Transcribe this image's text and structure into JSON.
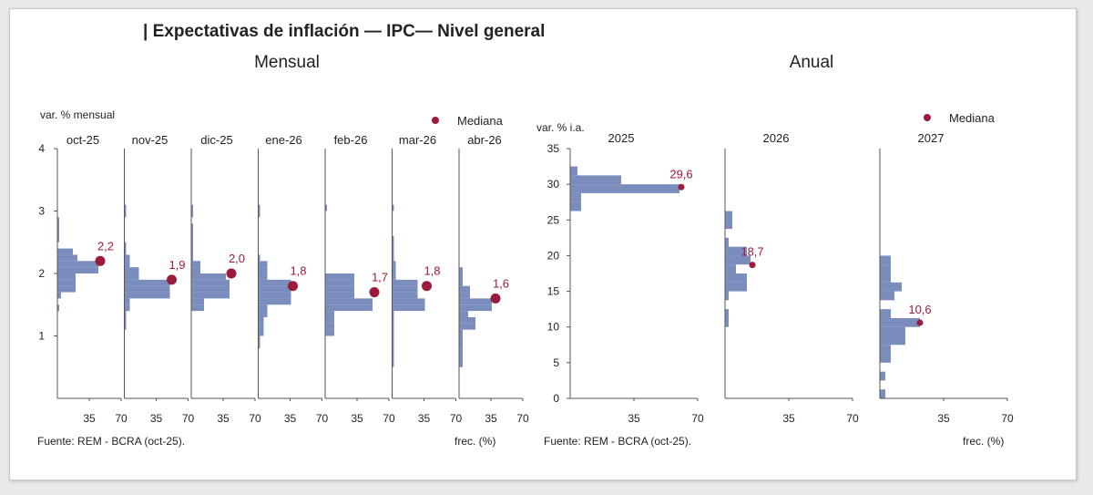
{
  "title": "| Expectativas de inflación — IPC— Nivel general",
  "colors": {
    "bar": "#7b8dbd",
    "median": "#9b1b3c",
    "axis": "#555555",
    "text": "#222222"
  },
  "mensual": {
    "heading": "Mensual",
    "ylabel": "var. % mensual",
    "legend": "Mediana",
    "source": "Fuente: REM - BCRA (oct-25).",
    "xlabel": "frec. (%)",
    "yticks": [
      "1",
      "2",
      "3",
      "4"
    ]
  },
  "anual": {
    "heading": "Anual",
    "ylabel": "var. % i.a.",
    "legend": "Mediana",
    "source": "Fuente: REM - BCRA (oct-25).",
    "xlabel": "frec. (%)",
    "yticks": [
      "0",
      "5",
      "10",
      "15",
      "20",
      "25",
      "30",
      "35"
    ]
  },
  "chart_data": [
    {
      "type": "bar",
      "orientation": "horizontal",
      "group": "Mensual",
      "ylabel": "var. % mensual",
      "xlabel": "frec. (%)",
      "ylim": [
        0,
        4
      ],
      "xlim": [
        0,
        70
      ],
      "xticks": [
        35,
        70
      ],
      "bin_width": 0.1,
      "panels": [
        {
          "name": "oct-25",
          "bins": [
            [
              1.4,
              2
            ],
            [
              1.6,
              4
            ],
            [
              1.7,
              20
            ],
            [
              1.8,
              20
            ],
            [
              1.9,
              20
            ],
            [
              2.0,
              45
            ],
            [
              2.1,
              45
            ],
            [
              2.2,
              22
            ],
            [
              2.3,
              17
            ],
            [
              2.5,
              2
            ],
            [
              2.6,
              2
            ],
            [
              2.7,
              2
            ],
            [
              2.8,
              2
            ]
          ],
          "median": 2.2,
          "median_label": "2,2",
          "median_freq": 47
        },
        {
          "name": "nov-25",
          "bins": [
            [
              1.1,
              2
            ],
            [
              1.2,
              2
            ],
            [
              1.3,
              2
            ],
            [
              1.4,
              6
            ],
            [
              1.5,
              6
            ],
            [
              1.6,
              50
            ],
            [
              1.7,
              50
            ],
            [
              1.8,
              50
            ],
            [
              1.9,
              16
            ],
            [
              2.0,
              16
            ],
            [
              2.1,
              6
            ],
            [
              2.2,
              6
            ],
            [
              2.3,
              2
            ],
            [
              2.4,
              2
            ],
            [
              2.9,
              2
            ],
            [
              3.0,
              2
            ]
          ],
          "median": 1.9,
          "median_label": "1,9",
          "median_freq": 52
        },
        {
          "name": "dic-25",
          "bins": [
            [
              1.4,
              14
            ],
            [
              1.5,
              14
            ],
            [
              1.6,
              42
            ],
            [
              1.7,
              42
            ],
            [
              1.8,
              42
            ],
            [
              1.9,
              38
            ],
            [
              2.0,
              10
            ],
            [
              2.1,
              10
            ],
            [
              2.2,
              2
            ],
            [
              2.3,
              2
            ],
            [
              2.4,
              2
            ],
            [
              2.5,
              2
            ],
            [
              2.6,
              2
            ],
            [
              2.7,
              2
            ],
            [
              2.9,
              2
            ],
            [
              3.0,
              2
            ]
          ],
          "median": 2.0,
          "median_label": "2,0",
          "median_freq": 44
        },
        {
          "name": "ene-26",
          "bins": [
            [
              0.8,
              2
            ],
            [
              0.9,
              2
            ],
            [
              1.0,
              6
            ],
            [
              1.1,
              6
            ],
            [
              1.2,
              6
            ],
            [
              1.3,
              10
            ],
            [
              1.4,
              10
            ],
            [
              1.5,
              36
            ],
            [
              1.6,
              36
            ],
            [
              1.7,
              36
            ],
            [
              1.8,
              36
            ],
            [
              1.9,
              10
            ],
            [
              2.0,
              10
            ],
            [
              2.1,
              10
            ],
            [
              2.2,
              2
            ],
            [
              2.9,
              2
            ],
            [
              3.0,
              2
            ]
          ],
          "median": 1.8,
          "median_label": "1,8",
          "median_freq": 38
        },
        {
          "name": "feb-26",
          "bins": [
            [
              1.0,
              10
            ],
            [
              1.1,
              10
            ],
            [
              1.2,
              10
            ],
            [
              1.3,
              10
            ],
            [
              1.4,
              52
            ],
            [
              1.5,
              52
            ],
            [
              1.6,
              32
            ],
            [
              1.7,
              32
            ],
            [
              1.8,
              32
            ],
            [
              1.9,
              32
            ],
            [
              3.0,
              2
            ]
          ],
          "median": 1.7,
          "median_label": "1,7",
          "median_freq": 54
        },
        {
          "name": "mar-26",
          "bins": [
            [
              0.5,
              2
            ],
            [
              0.6,
              2
            ],
            [
              0.7,
              2
            ],
            [
              0.8,
              2
            ],
            [
              0.9,
              2
            ],
            [
              1.0,
              2
            ],
            [
              1.1,
              2
            ],
            [
              1.2,
              2
            ],
            [
              1.3,
              2
            ],
            [
              1.4,
              36
            ],
            [
              1.5,
              36
            ],
            [
              1.6,
              28
            ],
            [
              1.7,
              28
            ],
            [
              1.8,
              28
            ],
            [
              1.9,
              4
            ],
            [
              2.0,
              4
            ],
            [
              2.1,
              4
            ],
            [
              2.2,
              2
            ],
            [
              2.3,
              2
            ],
            [
              2.4,
              2
            ],
            [
              2.5,
              2
            ],
            [
              3.0,
              2
            ]
          ],
          "median": 1.8,
          "median_label": "1,8",
          "median_freq": 38
        },
        {
          "name": "abr-26",
          "bins": [
            [
              0.5,
              4
            ],
            [
              0.6,
              4
            ],
            [
              0.7,
              4
            ],
            [
              0.8,
              4
            ],
            [
              0.9,
              4
            ],
            [
              1.0,
              4
            ],
            [
              1.1,
              18
            ],
            [
              1.2,
              18
            ],
            [
              1.3,
              10
            ],
            [
              1.4,
              36
            ],
            [
              1.5,
              36
            ],
            [
              1.6,
              12
            ],
            [
              1.7,
              12
            ],
            [
              1.8,
              4
            ],
            [
              1.9,
              4
            ],
            [
              2.0,
              4
            ]
          ],
          "median": 1.6,
          "median_label": "1,6",
          "median_freq": 40
        }
      ]
    },
    {
      "type": "bar",
      "orientation": "horizontal",
      "group": "Anual",
      "ylabel": "var. % i.a.",
      "xlabel": "frec. (%)",
      "ylim": [
        0,
        35
      ],
      "xlim": [
        0,
        70
      ],
      "xticks": [
        35,
        70
      ],
      "bin_width": 1.25,
      "panels": [
        {
          "name": "2025",
          "bins": [
            [
              26.25,
              6
            ],
            [
              27.5,
              6
            ],
            [
              28.75,
              60
            ],
            [
              30.0,
              28
            ],
            [
              31.25,
              4
            ]
          ],
          "median": 29.6,
          "median_label": "29,6",
          "median_freq": 61
        },
        {
          "name": "2026",
          "bins": [
            [
              10.0,
              2
            ],
            [
              11.25,
              2
            ],
            [
              13.75,
              2
            ],
            [
              15.0,
              12
            ],
            [
              16.25,
              12
            ],
            [
              17.5,
              6
            ],
            [
              18.75,
              14
            ],
            [
              20.0,
              12
            ],
            [
              21.25,
              2
            ],
            [
              23.75,
              4
            ],
            [
              25.0,
              4
            ]
          ],
          "median": 18.7,
          "median_label": "18,7",
          "median_freq": 15
        },
        {
          "name": "2027",
          "bins": [
            [
              0.0,
              3
            ],
            [
              2.5,
              3
            ],
            [
              5.0,
              6
            ],
            [
              6.25,
              6
            ],
            [
              7.5,
              14
            ],
            [
              8.75,
              14
            ],
            [
              10.0,
              22
            ],
            [
              11.25,
              6
            ],
            [
              13.75,
              8
            ],
            [
              15.0,
              12
            ],
            [
              16.25,
              6
            ],
            [
              17.5,
              6
            ],
            [
              18.75,
              6
            ]
          ],
          "median": 10.6,
          "median_label": "10,6",
          "median_freq": 22
        }
      ]
    }
  ]
}
